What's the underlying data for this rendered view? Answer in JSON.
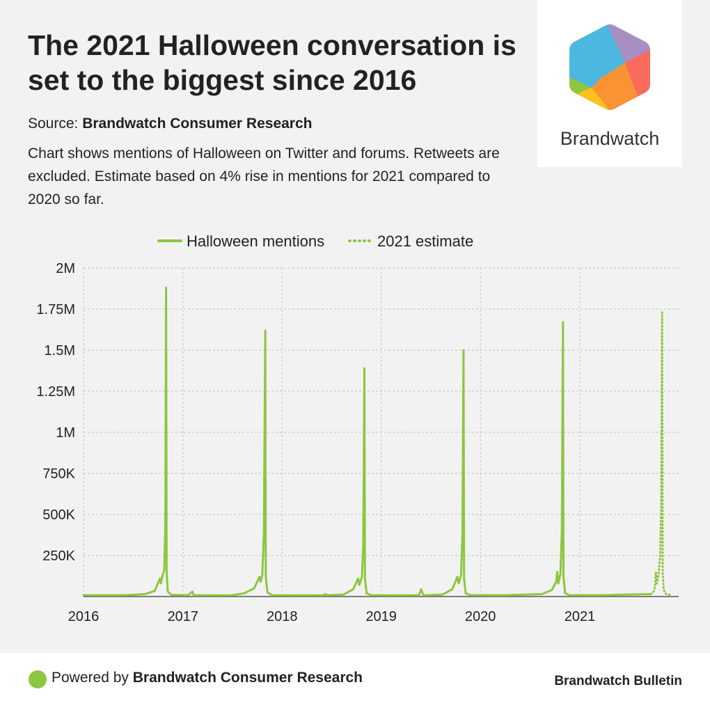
{
  "header": {
    "title": "The 2021 Halloween conversation is set to the biggest since 2016",
    "source_prefix": "Source: ",
    "source_name": "Brandwatch Consumer Research",
    "description": "Chart shows mentions of Halloween on Twitter and forums. Retweets are excluded. Estimate based on 4% rise in mentions for 2021 compared to 2020 so far."
  },
  "logo": {
    "text": "Brandwatch"
  },
  "footer": {
    "powered_prefix": "Powered by ",
    "powered_name": "Brandwatch Consumer Research",
    "brand": "Brandwatch Bulletin"
  },
  "colors": {
    "series": "#8dc63f",
    "grid": "#c8c8c8",
    "axis": "#555555",
    "text": "#222222",
    "background": "#f2f2f2"
  },
  "chart_data": {
    "type": "line",
    "title": "",
    "xlabel": "",
    "ylabel": "",
    "x_ticks": [
      "2016",
      "2017",
      "2018",
      "2019",
      "2020",
      "2021"
    ],
    "y_ticks": [
      "250K",
      "500K",
      "750K",
      "1M",
      "1.25M",
      "1.5M",
      "1.75M",
      "2M"
    ],
    "y_tick_values": [
      250000,
      500000,
      750000,
      1000000,
      1250000,
      1500000,
      1750000,
      2000000
    ],
    "xlim": [
      "2016-01-01",
      "2021-12-31"
    ],
    "ylim": [
      0,
      2000000
    ],
    "grid": true,
    "legend_position": "top",
    "series": [
      {
        "name": "Halloween mentions",
        "style": "solid",
        "points": [
          [
            "2016-01-01",
            8000
          ],
          [
            "2016-06-01",
            8000
          ],
          [
            "2016-08-15",
            15000
          ],
          [
            "2016-09-20",
            35000
          ],
          [
            "2016-10-08",
            110000
          ],
          [
            "2016-10-12",
            80000
          ],
          [
            "2016-10-18",
            130000
          ],
          [
            "2016-10-24",
            160000
          ],
          [
            "2016-10-28",
            420000
          ],
          [
            "2016-10-31",
            1880000
          ],
          [
            "2016-11-02",
            150000
          ],
          [
            "2016-11-06",
            30000
          ],
          [
            "2016-11-20",
            10000
          ],
          [
            "2017-01-20",
            8000
          ],
          [
            "2017-02-05",
            30000
          ],
          [
            "2017-02-10",
            7000
          ],
          [
            "2017-07-01",
            8000
          ],
          [
            "2017-08-15",
            20000
          ],
          [
            "2017-09-20",
            50000
          ],
          [
            "2017-10-10",
            120000
          ],
          [
            "2017-10-14",
            90000
          ],
          [
            "2017-10-20",
            130000
          ],
          [
            "2017-10-26",
            380000
          ],
          [
            "2017-10-31",
            1620000
          ],
          [
            "2017-11-02",
            120000
          ],
          [
            "2017-11-08",
            25000
          ],
          [
            "2017-11-25",
            8000
          ],
          [
            "2018-06-01",
            7000
          ],
          [
            "2018-06-10",
            15000
          ],
          [
            "2018-06-15",
            7000
          ],
          [
            "2018-08-15",
            12000
          ],
          [
            "2018-09-20",
            45000
          ],
          [
            "2018-10-08",
            110000
          ],
          [
            "2018-10-12",
            70000
          ],
          [
            "2018-10-22",
            120000
          ],
          [
            "2018-10-27",
            320000
          ],
          [
            "2018-10-31",
            1390000
          ],
          [
            "2018-11-02",
            110000
          ],
          [
            "2018-11-08",
            20000
          ],
          [
            "2018-11-25",
            8000
          ],
          [
            "2019-05-20",
            7000
          ],
          [
            "2019-05-28",
            45000
          ],
          [
            "2019-06-05",
            7000
          ],
          [
            "2019-08-15",
            12000
          ],
          [
            "2019-09-20",
            45000
          ],
          [
            "2019-10-08",
            120000
          ],
          [
            "2019-10-13",
            80000
          ],
          [
            "2019-10-22",
            130000
          ],
          [
            "2019-10-27",
            380000
          ],
          [
            "2019-10-31",
            1500000
          ],
          [
            "2019-11-02",
            110000
          ],
          [
            "2019-11-08",
            20000
          ],
          [
            "2019-11-25",
            8000
          ],
          [
            "2020-04-01",
            8000
          ],
          [
            "2020-08-15",
            15000
          ],
          [
            "2020-09-20",
            40000
          ],
          [
            "2020-10-06",
            90000
          ],
          [
            "2020-10-10",
            150000
          ],
          [
            "2020-10-14",
            80000
          ],
          [
            "2020-10-22",
            140000
          ],
          [
            "2020-10-27",
            400000
          ],
          [
            "2020-10-31",
            1670000
          ],
          [
            "2020-11-02",
            120000
          ],
          [
            "2020-11-08",
            20000
          ],
          [
            "2020-11-25",
            8000
          ],
          [
            "2021-04-01",
            8000
          ],
          [
            "2021-06-15",
            12000
          ],
          [
            "2021-09-20",
            15000
          ]
        ]
      },
      {
        "name": "2021 estimate",
        "style": "dotted",
        "points": [
          [
            "2021-09-20",
            15000
          ],
          [
            "2021-09-30",
            30000
          ],
          [
            "2021-10-05",
            60000
          ],
          [
            "2021-10-08",
            150000
          ],
          [
            "2021-10-12",
            80000
          ],
          [
            "2021-10-18",
            130000
          ],
          [
            "2021-10-24",
            250000
          ],
          [
            "2021-10-28",
            600000
          ],
          [
            "2021-10-31",
            1730000
          ],
          [
            "2021-11-02",
            160000
          ],
          [
            "2021-11-06",
            40000
          ],
          [
            "2021-11-15",
            15000
          ],
          [
            "2021-12-05",
            8000
          ]
        ]
      }
    ]
  }
}
